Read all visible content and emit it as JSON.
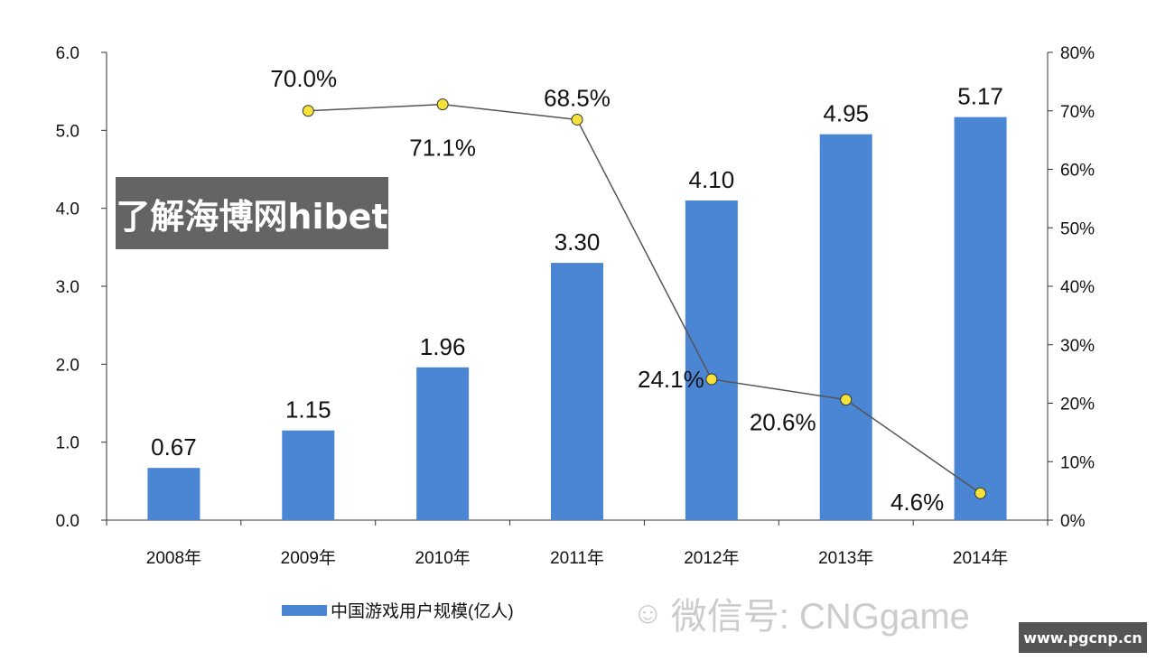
{
  "chart_data": {
    "type": "bar+line",
    "categories": [
      "2008年",
      "2009年",
      "2010年",
      "2011年",
      "2012年",
      "2013年",
      "2014年"
    ],
    "series": [
      {
        "name": "中国游戏用户规模(亿人)",
        "type": "bar",
        "axis": "left",
        "color": "#4a86d4",
        "values": [
          0.67,
          1.15,
          1.96,
          3.3,
          4.1,
          4.95,
          5.17
        ],
        "labels": [
          "0.67",
          "1.15",
          "1.96",
          "3.30",
          "4.10",
          "4.95",
          "5.17"
        ]
      },
      {
        "type": "line",
        "axis": "right",
        "color": "#555555",
        "marker_color": "#f5e23a",
        "values": [
          null,
          70.0,
          71.1,
          68.5,
          24.1,
          20.6,
          4.6
        ],
        "labels": [
          "",
          "70.0%",
          "71.1%",
          "68.5%",
          "24.1%",
          "20.6%",
          "4.6%"
        ]
      }
    ],
    "left_axis": {
      "ylim": [
        0,
        6
      ],
      "ticks": [
        "0.0",
        "1.0",
        "2.0",
        "3.0",
        "4.0",
        "5.0",
        "6.0"
      ]
    },
    "right_axis": {
      "ylim": [
        0,
        80
      ],
      "ticks": [
        "0%",
        "10%",
        "20%",
        "30%",
        "40%",
        "50%",
        "60%",
        "70%",
        "80%"
      ]
    },
    "grid": false,
    "legend": "bottom-left"
  },
  "legend_label": "中国游戏用户规模(亿人)",
  "watermark": {
    "text": "微信号: CNGgame",
    "icon": "wechat-icon"
  },
  "overlay_text": "了解海博网hibet",
  "site_badge": "www.pgcnp.cn"
}
